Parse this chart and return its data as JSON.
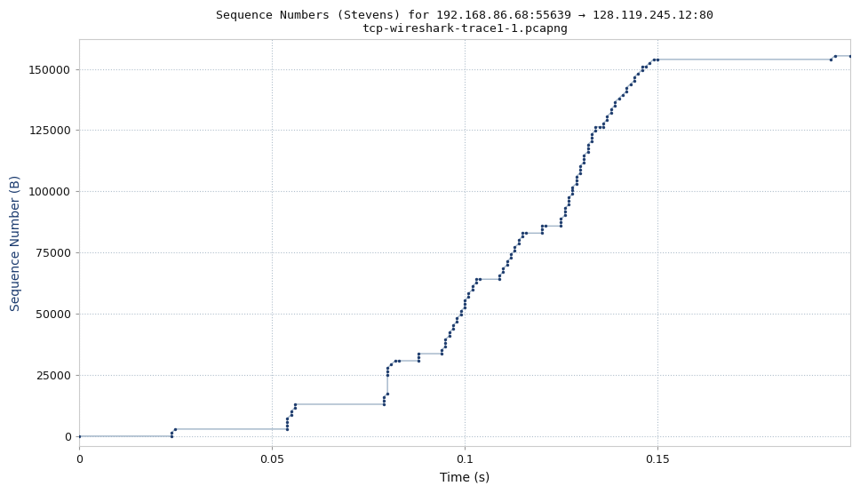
{
  "title_line1": "Sequence Numbers (Stevens) for 192.168.86.68:55639 → 128.119.245.12:80",
  "title_line2": "tcp-wireshark-trace1-1.pcapng",
  "xlabel": "Time (s)",
  "ylabel": "Sequence Number (B)",
  "line_color": "#a0b4c8",
  "dot_color": "#1f3d6e",
  "background_color": "#ffffff",
  "grid_color": "#b0bfcc",
  "xlim": [
    0,
    0.2
  ],
  "ylim": [
    -4000,
    162000
  ],
  "xticks": [
    0,
    0.05,
    0.1,
    0.15
  ],
  "yticks": [
    0,
    25000,
    50000,
    75000,
    100000,
    125000,
    150000
  ],
  "points": [
    [
      0.0,
      0
    ],
    [
      0.024,
      0
    ],
    [
      0.024,
      1448
    ],
    [
      0.025,
      2896
    ],
    [
      0.054,
      2896
    ],
    [
      0.054,
      4344
    ],
    [
      0.054,
      5792
    ],
    [
      0.054,
      7240
    ],
    [
      0.055,
      8688
    ],
    [
      0.055,
      10136
    ],
    [
      0.056,
      11584
    ],
    [
      0.056,
      13032
    ],
    [
      0.079,
      13032
    ],
    [
      0.079,
      14480
    ],
    [
      0.079,
      15928
    ],
    [
      0.08,
      17376
    ],
    [
      0.08,
      25000
    ],
    [
      0.08,
      26448
    ],
    [
      0.08,
      27896
    ],
    [
      0.081,
      29344
    ],
    [
      0.082,
      30792
    ],
    [
      0.083,
      30792
    ],
    [
      0.088,
      30792
    ],
    [
      0.088,
      32240
    ],
    [
      0.088,
      33688
    ],
    [
      0.094,
      33688
    ],
    [
      0.094,
      35136
    ],
    [
      0.095,
      36584
    ],
    [
      0.095,
      38032
    ],
    [
      0.095,
      39480
    ],
    [
      0.096,
      40928
    ],
    [
      0.096,
      42376
    ],
    [
      0.097,
      43824
    ],
    [
      0.097,
      45272
    ],
    [
      0.098,
      46720
    ],
    [
      0.098,
      48168
    ],
    [
      0.099,
      49616
    ],
    [
      0.099,
      51064
    ],
    [
      0.1,
      52512
    ],
    [
      0.1,
      53960
    ],
    [
      0.1,
      55408
    ],
    [
      0.101,
      56856
    ],
    [
      0.101,
      58304
    ],
    [
      0.102,
      59752
    ],
    [
      0.102,
      61200
    ],
    [
      0.103,
      62648
    ],
    [
      0.103,
      64096
    ],
    [
      0.104,
      64096
    ],
    [
      0.109,
      64096
    ],
    [
      0.109,
      65544
    ],
    [
      0.11,
      66992
    ],
    [
      0.11,
      68440
    ],
    [
      0.111,
      69888
    ],
    [
      0.111,
      71336
    ],
    [
      0.112,
      72784
    ],
    [
      0.112,
      74232
    ],
    [
      0.113,
      75680
    ],
    [
      0.113,
      77128
    ],
    [
      0.114,
      78576
    ],
    [
      0.114,
      80024
    ],
    [
      0.115,
      81472
    ],
    [
      0.115,
      82920
    ],
    [
      0.116,
      82920
    ],
    [
      0.12,
      82920
    ],
    [
      0.12,
      84368
    ],
    [
      0.12,
      85816
    ],
    [
      0.121,
      85816
    ],
    [
      0.125,
      85816
    ],
    [
      0.125,
      87264
    ],
    [
      0.125,
      88712
    ],
    [
      0.126,
      90160
    ],
    [
      0.126,
      91608
    ],
    [
      0.126,
      93056
    ],
    [
      0.127,
      94504
    ],
    [
      0.127,
      95952
    ],
    [
      0.127,
      97400
    ],
    [
      0.128,
      98848
    ],
    [
      0.128,
      100296
    ],
    [
      0.128,
      101744
    ],
    [
      0.129,
      103192
    ],
    [
      0.129,
      104640
    ],
    [
      0.129,
      106088
    ],
    [
      0.13,
      107536
    ],
    [
      0.13,
      108984
    ],
    [
      0.13,
      110432
    ],
    [
      0.131,
      111880
    ],
    [
      0.131,
      113328
    ],
    [
      0.131,
      114776
    ],
    [
      0.132,
      116224
    ],
    [
      0.132,
      117672
    ],
    [
      0.132,
      119120
    ],
    [
      0.133,
      120568
    ],
    [
      0.133,
      122016
    ],
    [
      0.133,
      123464
    ],
    [
      0.134,
      124912
    ],
    [
      0.134,
      126360
    ],
    [
      0.135,
      126360
    ],
    [
      0.136,
      126360
    ],
    [
      0.136,
      127808
    ],
    [
      0.137,
      129256
    ],
    [
      0.137,
      130704
    ],
    [
      0.138,
      132152
    ],
    [
      0.138,
      133600
    ],
    [
      0.139,
      135048
    ],
    [
      0.139,
      136496
    ],
    [
      0.14,
      137944
    ],
    [
      0.141,
      139392
    ],
    [
      0.142,
      140840
    ],
    [
      0.142,
      142288
    ],
    [
      0.143,
      143736
    ],
    [
      0.144,
      145184
    ],
    [
      0.144,
      146632
    ],
    [
      0.145,
      148080
    ],
    [
      0.146,
      149528
    ],
    [
      0.146,
      150976
    ],
    [
      0.147,
      150976
    ],
    [
      0.148,
      152424
    ],
    [
      0.149,
      153872
    ],
    [
      0.15,
      153872
    ],
    [
      0.195,
      153872
    ],
    [
      0.196,
      155320
    ],
    [
      0.2,
      155320
    ]
  ]
}
